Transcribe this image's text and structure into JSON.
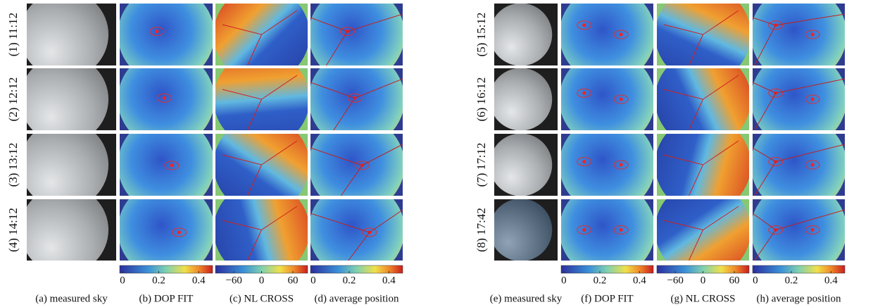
{
  "panels": [
    {
      "rows": [
        "(1) 11:12",
        "(2) 12:12",
        "(3) 13:12",
        "(4) 14:12"
      ],
      "captions": [
        "(a) measured sky",
        "(b) DOP FIT",
        "(c) NL CROSS",
        "(d) average position"
      ],
      "colorbars": [
        {
          "ticks": [
            "0",
            "0.2",
            "0.4"
          ]
        },
        {
          "ticks": [
            "−60",
            "0",
            "60"
          ]
        },
        {
          "ticks": [
            "0",
            "0.2",
            "0.4"
          ]
        }
      ]
    },
    {
      "rows": [
        "(5) 15:12",
        "(6) 16:12",
        "(7) 17:12",
        "(8) 17:42"
      ],
      "captions": [
        "(e) measured sky",
        "(f) DOP FIT",
        "(g) NL CROSS",
        "(h) average position"
      ],
      "colorbars": [
        {
          "ticks": [
            "0",
            "0.2",
            "0.4"
          ]
        },
        {
          "ticks": [
            "−60",
            "0",
            "60"
          ]
        },
        {
          "ticks": [
            "0",
            "0.2",
            "0.4"
          ]
        }
      ]
    }
  ]
}
